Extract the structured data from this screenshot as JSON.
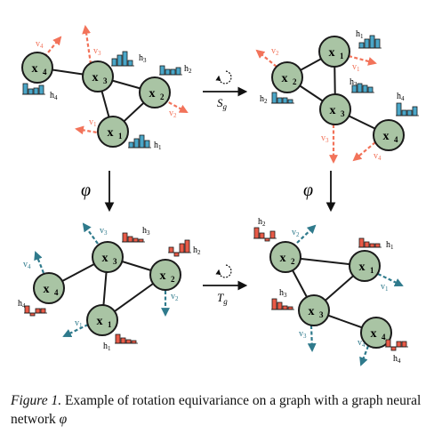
{
  "colors": {
    "node_fill": "#a9c4a4",
    "node_stroke": "#1a1a1a",
    "input_vector": "#f2735a",
    "output_vector": "#2f7a8c",
    "input_hist": "#4aa6c8",
    "output_hist": "#e85a47"
  },
  "panels": {
    "top_left": {
      "nodes": {
        "x1": "x",
        "x1_sub": "1",
        "x2": "x",
        "x2_sub": "2",
        "x3": "x",
        "x3_sub": "3",
        "x4": "x",
        "x4_sub": "4"
      },
      "vectors": {
        "v1": "v",
        "v1_sub": "1",
        "v2": "v",
        "v2_sub": "2",
        "v3": "v",
        "v3_sub": "3",
        "v4": "v",
        "v4_sub": "4"
      },
      "hists": {
        "h1": "h",
        "h1_sub": "1",
        "h2": "h",
        "h2_sub": "2",
        "h3": "h",
        "h3_sub": "3",
        "h4": "h",
        "h4_sub": "4"
      }
    },
    "top_right": {
      "nodes": {
        "x1": "x",
        "x1_sub": "1",
        "x2": "x",
        "x2_sub": "2",
        "x3": "x",
        "x3_sub": "3",
        "x4": "x",
        "x4_sub": "4"
      },
      "vectors": {
        "v1": "v",
        "v1_sub": "1",
        "v2": "v",
        "v2_sub": "2",
        "v3": "v",
        "v3_sub": "3",
        "v4": "v",
        "v4_sub": "4"
      },
      "hists": {
        "h1": "h",
        "h1_sub": "1",
        "h2": "h",
        "h2_sub": "2",
        "h3": "h",
        "h3_sub": "3",
        "h4": "h",
        "h4_sub": "4"
      }
    },
    "bottom_left": {
      "nodes": {
        "x1": "x",
        "x1_sub": "1",
        "x2": "x",
        "x2_sub": "2",
        "x3": "x",
        "x3_sub": "3",
        "x4": "x",
        "x4_sub": "4"
      },
      "vectors": {
        "v1": "v",
        "v1_sub": "1",
        "v2": "v",
        "v2_sub": "2",
        "v3": "v",
        "v3_sub": "3",
        "v4": "v",
        "v4_sub": "4"
      },
      "hists": {
        "h1": "h",
        "h1_sub": "1",
        "h2": "h",
        "h2_sub": "2",
        "h3": "h",
        "h3_sub": "3",
        "h4": "h",
        "h4_sub": "4"
      }
    },
    "bottom_right": {
      "nodes": {
        "x1": "x",
        "x1_sub": "1",
        "x2": "x",
        "x2_sub": "2",
        "x3": "x",
        "x3_sub": "3",
        "x4": "x",
        "x4_sub": "4"
      },
      "vectors": {
        "v1": "v",
        "v1_sub": "1",
        "v2": "v",
        "v2_sub": "2",
        "v3": "v",
        "v3_sub": "3",
        "v4": "v",
        "v4_sub": "4"
      },
      "hists": {
        "h1": "h",
        "h1_sub": "1",
        "h2": "h",
        "h2_sub": "2",
        "h3": "h",
        "h3_sub": "3",
        "h4": "h",
        "h4_sub": "4"
      }
    }
  },
  "arrows": {
    "top": {
      "label": "S",
      "sub": "g"
    },
    "bottom": {
      "label": "T",
      "sub": "g"
    },
    "left": {
      "label": "φ"
    },
    "right": {
      "label": "φ"
    }
  },
  "caption": {
    "label": "Figure 1.",
    "text": " Example of rotation equivariance on a graph with a graph neural network ",
    "phi": "φ"
  }
}
